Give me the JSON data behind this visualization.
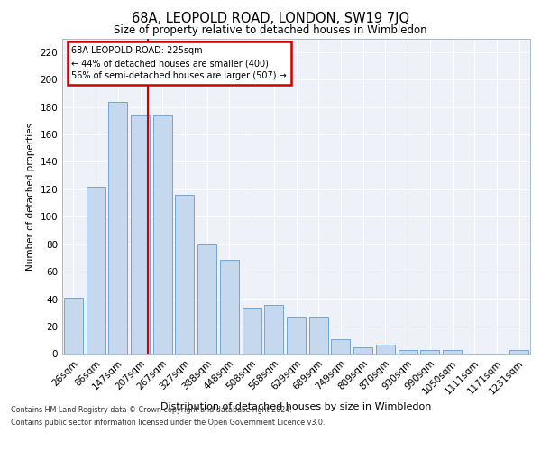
{
  "title": "68A, LEOPOLD ROAD, LONDON, SW19 7JQ",
  "subtitle": "Size of property relative to detached houses in Wimbledon",
  "xlabel": "Distribution of detached houses by size in Wimbledon",
  "ylabel": "Number of detached properties",
  "categories": [
    "26sqm",
    "86sqm",
    "147sqm",
    "207sqm",
    "267sqm",
    "327sqm",
    "388sqm",
    "448sqm",
    "508sqm",
    "568sqm",
    "629sqm",
    "689sqm",
    "749sqm",
    "809sqm",
    "870sqm",
    "930sqm",
    "990sqm",
    "1050sqm",
    "1111sqm",
    "1171sqm",
    "1231sqm"
  ],
  "values": [
    41,
    122,
    184,
    174,
    174,
    116,
    80,
    69,
    33,
    36,
    27,
    27,
    11,
    5,
    7,
    3,
    3,
    3,
    0,
    0,
    3
  ],
  "bar_color": "#c5d8ee",
  "bar_edge_color": "#6699cc",
  "property_line_color": "#cc0000",
  "annotation_box_color": "#cc0000",
  "annotation_text_line1": "68A LEOPOLD ROAD: 225sqm",
  "annotation_text_line2": "← 44% of detached houses are smaller (400)",
  "annotation_text_line3": "56% of semi-detached houses are larger (507) →",
  "ylim": [
    0,
    230
  ],
  "yticks": [
    0,
    20,
    40,
    60,
    80,
    100,
    120,
    140,
    160,
    180,
    200,
    220
  ],
  "background_color": "#eef2f8",
  "grid_color": "#ffffff",
  "footer_line1": "Contains HM Land Registry data © Crown copyright and database right 2024.",
  "footer_line2": "Contains public sector information licensed under the Open Government Licence v3.0."
}
